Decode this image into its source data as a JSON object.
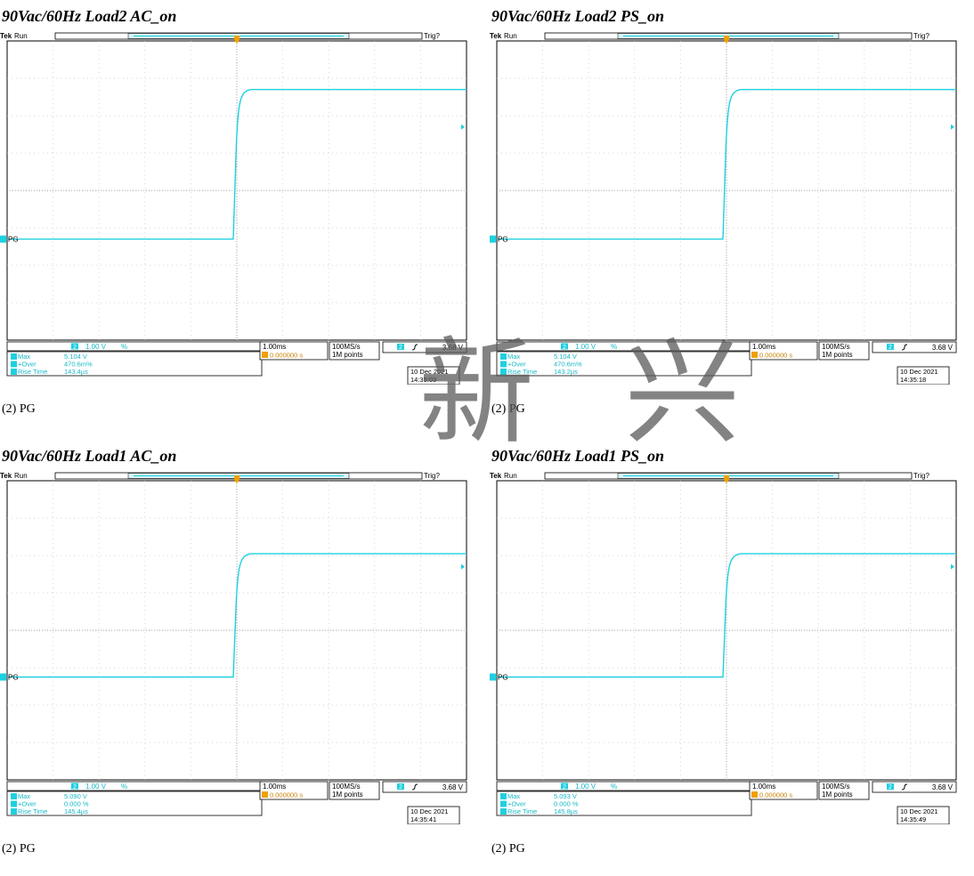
{
  "panels": [
    {
      "title": "90Vac/60Hz Load2 AC_on",
      "caption": "(2) PG",
      "scope": {
        "brand": "Tek",
        "status": "Run",
        "trig_status": "Trig?",
        "channel": "2",
        "trace_label": "PG",
        "ch_scale": "1.00 V",
        "ch_bw": "%",
        "timebase": "1.00ms",
        "trigger_pos": "0.000000 s",
        "sample_rate": "100MS/s",
        "record": "1M points",
        "trig_channel": "2",
        "trig_level": "3.68 V",
        "meas": [
          {
            "name": "Max",
            "value": "5.104 V"
          },
          {
            "name": "+Over",
            "value": "470.6m%"
          },
          {
            "name": "Rise Time",
            "value": "143.4µs"
          }
        ],
        "date": "10 Dec  2021",
        "time": "14:35:03",
        "wave": {
          "low_div": -1.3,
          "high_div": 2.7,
          "edge_div": 0
        }
      }
    },
    {
      "title": "90Vac/60Hz Load2 PS_on",
      "caption": "(2) PG",
      "scope": {
        "brand": "Tek",
        "status": "Run",
        "trig_status": "Trig?",
        "channel": "2",
        "trace_label": "PG",
        "ch_scale": "1.00 V",
        "ch_bw": "%",
        "timebase": "1.00ms",
        "trigger_pos": "0.000000 s",
        "sample_rate": "100MS/s",
        "record": "1M points",
        "trig_channel": "2",
        "trig_level": "3.68 V",
        "meas": [
          {
            "name": "Max",
            "value": "5.104 V"
          },
          {
            "name": "+Over",
            "value": "470.6m%"
          },
          {
            "name": "Rise Time",
            "value": "143.2µs"
          }
        ],
        "date": "10 Dec  2021",
        "time": "14:35:18",
        "wave": {
          "low_div": -1.3,
          "high_div": 2.7,
          "edge_div": 0
        }
      }
    },
    {
      "title": "90Vac/60Hz Load1 AC_on",
      "caption": "(2) PG",
      "scope": {
        "brand": "Tek",
        "status": "Run",
        "trig_status": "Trig?",
        "channel": "2",
        "trace_label": "PG",
        "ch_scale": "1.00 V",
        "ch_bw": "%",
        "timebase": "1.00ms",
        "trigger_pos": "0.000000 s",
        "sample_rate": "100MS/s",
        "record": "1M points",
        "trig_channel": "2",
        "trig_level": "3.68 V",
        "meas": [
          {
            "name": "Max",
            "value": "5.090 V"
          },
          {
            "name": "+Over",
            "value": "0.000 %"
          },
          {
            "name": "Rise Time",
            "value": "145.4µs"
          }
        ],
        "date": "10 Dec  2021",
        "time": "14:35:41",
        "wave": {
          "low_div": -1.25,
          "high_div": 2.05,
          "edge_div": 0
        }
      }
    },
    {
      "title": "90Vac/60Hz Load1 PS_on",
      "caption": "(2) PG",
      "scope": {
        "brand": "Tek",
        "status": "Run",
        "trig_status": "Trig?",
        "channel": "2",
        "trace_label": "PG",
        "ch_scale": "1.00 V",
        "ch_bw": "%",
        "timebase": "1.00ms",
        "trigger_pos": "0.000000 s",
        "sample_rate": "100MS/s",
        "record": "1M points",
        "trig_channel": "2",
        "trig_level": "3.68 V",
        "meas": [
          {
            "name": "Max",
            "value": "5.093 V"
          },
          {
            "name": "+Over",
            "value": "0.000 %"
          },
          {
            "name": "Rise Time",
            "value": "145.8µs"
          }
        ],
        "date": "10 Dec  2021",
        "time": "14:35:49",
        "wave": {
          "low_div": -1.25,
          "high_div": 2.05,
          "edge_div": 0
        }
      }
    }
  ],
  "watermark": {
    "text": "新 兴"
  },
  "colors": {
    "trace": "#1ed0e0",
    "trigger": "#f0a000",
    "grid": "#c8c8c8",
    "frame": "#000000"
  }
}
